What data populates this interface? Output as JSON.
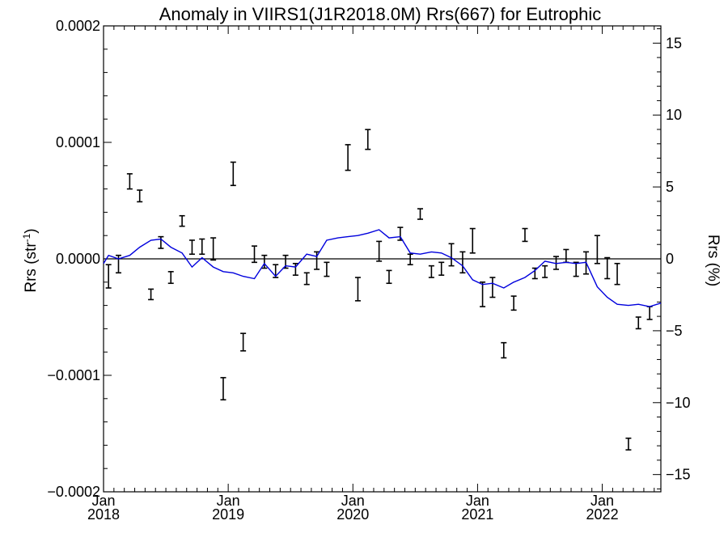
{
  "chart_data": {
    "type": "line",
    "title": "Anomaly in VIIRS1(J1R2018.0M) Rrs(667) for Eutrophic",
    "ylabel_left": "Rrs (str",
    "ylabel_left_sup": "-1",
    "ylabel_left_close": ")",
    "ylabel_right": "Rrs (%)",
    "x_tick_labels": [
      {
        "month": "Jan",
        "year": "2018"
      },
      {
        "month": "Jan",
        "year": "2019"
      },
      {
        "month": "Jan",
        "year": "2020"
      },
      {
        "month": "Jan",
        "year": "2021"
      },
      {
        "month": "Jan",
        "year": "2022"
      }
    ],
    "x_tick_values": [
      2018.0,
      2019.0,
      2020.0,
      2021.0,
      2022.0
    ],
    "xlim": [
      2018.0,
      2022.47
    ],
    "ylim_left": [
      -0.0002,
      0.0002
    ],
    "ylim_right": [
      -16.2,
      16.2
    ],
    "left_ticks": [
      {
        "value": 0.0002,
        "label": "0.0002"
      },
      {
        "value": 0.0001,
        "label": "0.0001"
      },
      {
        "value": 0.0,
        "label": "0.0000"
      },
      {
        "value": -0.0001,
        "label": "−0.0001"
      },
      {
        "value": -0.0002,
        "label": "−0.0002"
      }
    ],
    "right_ticks": [
      {
        "value": 15,
        "label": "15"
      },
      {
        "value": 10,
        "label": "10"
      },
      {
        "value": 5,
        "label": "5"
      },
      {
        "value": 0,
        "label": "0"
      },
      {
        "value": -5,
        "label": "−5"
      },
      {
        "value": -10,
        "label": "−10"
      },
      {
        "value": -15,
        "label": "−15"
      }
    ],
    "series": [
      {
        "kind": "errorbar",
        "color": "#000000",
        "points": [
          {
            "x": 2018.04,
            "low": -2.5e-05,
            "high": -5e-06
          },
          {
            "x": 2018.12,
            "low": -1.2e-05,
            "high": 3e-06
          },
          {
            "x": 2018.21,
            "low": 6e-05,
            "high": 7.3e-05
          },
          {
            "x": 2018.29,
            "low": 4.9e-05,
            "high": 5.9e-05
          },
          {
            "x": 2018.38,
            "low": -3.5e-05,
            "high": -2.6e-05
          },
          {
            "x": 2018.46,
            "low": 9e-06,
            "high": 1.9e-05
          },
          {
            "x": 2018.54,
            "low": -2.1e-05,
            "high": -1.1e-05
          },
          {
            "x": 2018.63,
            "low": 2.8e-05,
            "high": 3.7e-05
          },
          {
            "x": 2018.71,
            "low": 4e-06,
            "high": 1.6e-05
          },
          {
            "x": 2018.79,
            "low": 4e-06,
            "high": 1.7e-05
          },
          {
            "x": 2018.88,
            "low": -1e-06,
            "high": 1.8e-05
          },
          {
            "x": 2018.96,
            "low": -0.000121,
            "high": -0.000102
          },
          {
            "x": 2019.04,
            "low": 6.3e-05,
            "high": 8.3e-05
          },
          {
            "x": 2019.12,
            "low": -7.9e-05,
            "high": -6.4e-05
          },
          {
            "x": 2019.21,
            "low": -3e-06,
            "high": 1.1e-05
          },
          {
            "x": 2019.29,
            "low": -8e-06,
            "high": 3e-06
          },
          {
            "x": 2019.38,
            "low": -1.6e-05,
            "high": -5e-06
          },
          {
            "x": 2019.46,
            "low": -8e-06,
            "high": 3e-06
          },
          {
            "x": 2019.54,
            "low": -1.4e-05,
            "high": -4e-06
          },
          {
            "x": 2019.63,
            "low": -2.2e-05,
            "high": -1.2e-05
          },
          {
            "x": 2019.71,
            "low": -9e-06,
            "high": 6e-06
          },
          {
            "x": 2019.79,
            "low": -1.5e-05,
            "high": -3e-06
          },
          {
            "x": 2019.96,
            "low": 7.6e-05,
            "high": 9.8e-05
          },
          {
            "x": 2020.04,
            "low": -3.6e-05,
            "high": -1.6e-05
          },
          {
            "x": 2020.12,
            "low": 9.4e-05,
            "high": 0.000111
          },
          {
            "x": 2020.21,
            "low": -2e-06,
            "high": 1.5e-05
          },
          {
            "x": 2020.29,
            "low": -2.1e-05,
            "high": -1e-05
          },
          {
            "x": 2020.38,
            "low": 1.6e-05,
            "high": 2.7e-05
          },
          {
            "x": 2020.46,
            "low": -5e-06,
            "high": 4e-06
          },
          {
            "x": 2020.54,
            "low": 3.4e-05,
            "high": 4.3e-05
          },
          {
            "x": 2020.63,
            "low": -1.6e-05,
            "high": -6e-06
          },
          {
            "x": 2020.71,
            "low": -1.4e-05,
            "high": -3e-06
          },
          {
            "x": 2020.79,
            "low": -6e-06,
            "high": 1.3e-05
          },
          {
            "x": 2020.88,
            "low": -1.2e-05,
            "high": 6e-06
          },
          {
            "x": 2020.96,
            "low": 5e-06,
            "high": 2.6e-05
          },
          {
            "x": 2021.04,
            "low": -4.1e-05,
            "high": -2e-05
          },
          {
            "x": 2021.12,
            "low": -3.3e-05,
            "high": -1.6e-05
          },
          {
            "x": 2021.21,
            "low": -8.5e-05,
            "high": -7.2e-05
          },
          {
            "x": 2021.29,
            "low": -4.4e-05,
            "high": -3.2e-05
          },
          {
            "x": 2021.38,
            "low": 1.5e-05,
            "high": 2.6e-05
          },
          {
            "x": 2021.46,
            "low": -1.7e-05,
            "high": -8e-06
          },
          {
            "x": 2021.54,
            "low": -1.6e-05,
            "high": -6e-06
          },
          {
            "x": 2021.63,
            "low": -9e-06,
            "high": 2e-06
          },
          {
            "x": 2021.71,
            "low": -3e-06,
            "high": 8e-06
          },
          {
            "x": 2021.79,
            "low": -1.5e-05,
            "high": -3e-06
          },
          {
            "x": 2021.87,
            "low": -1.3e-05,
            "high": 6e-06
          },
          {
            "x": 2021.96,
            "low": -4e-06,
            "high": 2e-05
          },
          {
            "x": 2022.04,
            "low": -1.7e-05,
            "high": 1e-06
          },
          {
            "x": 2022.12,
            "low": -2.2e-05,
            "high": -4e-06
          },
          {
            "x": 2022.21,
            "low": -0.000164,
            "high": -0.000154
          },
          {
            "x": 2022.29,
            "low": -6e-05,
            "high": -5e-05
          },
          {
            "x": 2022.38,
            "low": -5.2e-05,
            "high": -4.1e-05
          }
        ]
      },
      {
        "kind": "line",
        "color": "#0000dd",
        "x": [
          2018.0,
          2018.04,
          2018.12,
          2018.21,
          2018.29,
          2018.38,
          2018.46,
          2018.54,
          2018.63,
          2018.71,
          2018.79,
          2018.88,
          2018.96,
          2019.04,
          2019.12,
          2019.21,
          2019.29,
          2019.38,
          2019.46,
          2019.54,
          2019.63,
          2019.71,
          2019.79,
          2019.88,
          2019.96,
          2020.04,
          2020.12,
          2020.21,
          2020.29,
          2020.38,
          2020.46,
          2020.54,
          2020.63,
          2020.71,
          2020.79,
          2020.88,
          2020.96,
          2021.04,
          2021.12,
          2021.21,
          2021.29,
          2021.38,
          2021.46,
          2021.54,
          2021.63,
          2021.71,
          2021.79,
          2021.87,
          2021.96,
          2022.04,
          2022.12,
          2022.21,
          2022.29,
          2022.38,
          2022.47
        ],
        "y": [
          -4e-06,
          3e-06,
          0.0,
          3e-06,
          1e-05,
          1.6e-05,
          1.7e-05,
          1e-05,
          5e-06,
          -7e-06,
          1e-06,
          -7e-06,
          -1.1e-05,
          -1.2e-05,
          -1.5e-05,
          -1.7e-05,
          -4e-06,
          -1.5e-05,
          -6e-06,
          -7e-06,
          4e-06,
          2e-06,
          1.6e-05,
          1.8e-05,
          1.9e-05,
          2e-05,
          2.2e-05,
          2.5e-05,
          1.8e-05,
          1.9e-05,
          5e-06,
          4e-06,
          6e-06,
          5e-06,
          1e-06,
          -6e-06,
          -1.8e-05,
          -2.2e-05,
          -2.1e-05,
          -2.5e-05,
          -2e-05,
          -1.6e-05,
          -1e-05,
          -2e-06,
          -4e-06,
          -3e-06,
          -4e-06,
          -3e-06,
          -2.4e-05,
          -3.3e-05,
          -3.9e-05,
          -4e-05,
          -3.9e-05,
          -4.1e-05,
          -3.8e-05
        ]
      }
    ],
    "zero_line": 0.0,
    "grid": false,
    "legend": "none"
  }
}
